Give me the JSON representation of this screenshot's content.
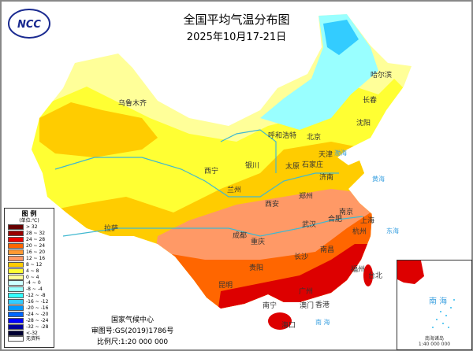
{
  "header": {
    "title": "全国平均气温分布图",
    "subtitle": "2025年10月17-21日",
    "logo_text": "NCC"
  },
  "legend": {
    "title": "图 例",
    "unit": "(单位:℃)",
    "items": [
      {
        "label": "> 32",
        "color": "#660000"
      },
      {
        "label": "28 ~ 32",
        "color": "#990000"
      },
      {
        "label": "24 ~ 28",
        "color": "#ee0000"
      },
      {
        "label": "20 ~ 24",
        "color": "#ff6600"
      },
      {
        "label": "16 ~ 20",
        "color": "#ff9933"
      },
      {
        "label": "12 ~ 16",
        "color": "#ff9966"
      },
      {
        "label": "8 ~ 12",
        "color": "#ffcc00"
      },
      {
        "label": "4 ~ 8",
        "color": "#ffff33"
      },
      {
        "label": "0 ~ 4",
        "color": "#ffff99"
      },
      {
        "label": "-4 ~ 0",
        "color": "#ccffff"
      },
      {
        "label": "-8 ~ -4",
        "color": "#99ffff"
      },
      {
        "label": "-12 ~ -8",
        "color": "#33ffff"
      },
      {
        "label": "-16 ~ -12",
        "color": "#33ccff"
      },
      {
        "label": "-20 ~ -16",
        "color": "#0099ff"
      },
      {
        "label": "-24 ~ -20",
        "color": "#0066ff"
      },
      {
        "label": "-28 ~ -24",
        "color": "#0000ff"
      },
      {
        "label": "-32 ~ -28",
        "color": "#000099"
      },
      {
        "label": "<-32",
        "color": "#000033"
      },
      {
        "label": "无资料",
        "color": "#ffffff"
      }
    ]
  },
  "credits": {
    "org": "国家气候中心",
    "approval": "审图号:GS(2019)1786号",
    "scale": "比例尺:1:20 000 000"
  },
  "inset": {
    "name": "南海诸岛",
    "scale": "1:40 000 000",
    "sea": "南 海"
  },
  "seas": {
    "bohai": "渤海",
    "huanghai": "黄海",
    "donghai": "东海",
    "nanhai": "南 海"
  },
  "cities": {
    "urumqi": "乌鲁木齐",
    "harbin": "哈尔滨",
    "changchun": "长春",
    "shenyang": "沈阳",
    "hohhot": "呼和浩特",
    "beijing": "北京",
    "tianjin": "天津",
    "yinchuan": "银川",
    "taiyuan": "太原",
    "shijiazhuang": "石家庄",
    "xining": "西宁",
    "lanzhou": "兰州",
    "jinan": "济南",
    "zhengzhou": "郑州",
    "xian": "西安",
    "hefei": "合肥",
    "nanjing": "南京",
    "shanghai": "上海",
    "hangzhou": "杭州",
    "wuhan": "武汉",
    "chengdu": "成都",
    "chongqing": "重庆",
    "changsha": "长沙",
    "nanchang": "南昌",
    "fuzhou": "福州",
    "taipei": "台北",
    "guiyang": "贵阳",
    "kunming": "昆明",
    "nanning": "南宁",
    "guangzhou": "广州",
    "hongkong": "香港",
    "macau": "澳门",
    "haikou": "海口",
    "lhasa": "拉萨"
  }
}
